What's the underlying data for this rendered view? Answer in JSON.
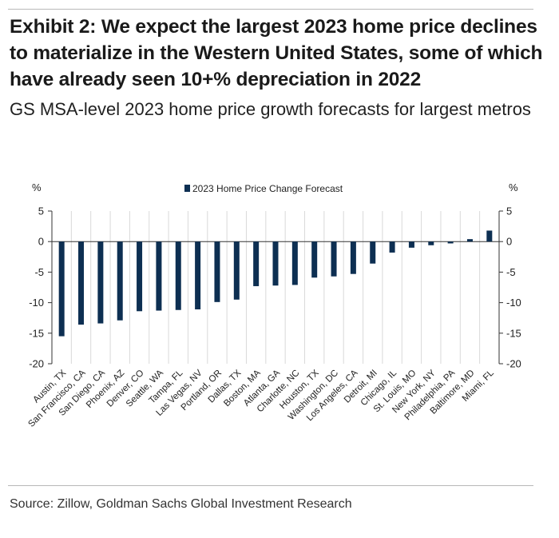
{
  "header": {
    "title": "Exhibit 2: We expect the largest 2023 home price declines to materialize in the Western United States, some of which have already seen 10+% depreciation in 2022",
    "subtitle": "GS MSA-level 2023 home price growth forecasts for largest metros"
  },
  "footer": {
    "source": "Source: Zillow, Goldman Sachs Global Investment Research"
  },
  "chart_data": {
    "type": "bar",
    "title": "",
    "xlabel": "",
    "ylabel": "%",
    "ylabel_right": "%",
    "ylim": [
      -20,
      5
    ],
    "yticks": [
      5,
      0,
      -5,
      -10,
      -15,
      -20
    ],
    "grid": true,
    "legend": "top-center",
    "bar_color": "#0d2f52",
    "categories": [
      "Austin, TX",
      "San Francisco, CA",
      "San Diego, CA",
      "Phoenix, AZ",
      "Denver, CO",
      "Seattle, WA",
      "Tampa, FL",
      "Las Vegas, NV",
      "Portland, OR",
      "Dallas, TX",
      "Boston, MA",
      "Atlanta, GA",
      "Charlotte, NC",
      "Houston, TX",
      "Washington, DC",
      "Los Angeles, CA",
      "Detroit, MI",
      "Chicago, IL",
      "St. Louis, MO",
      "New York, NY",
      "Philadelphia, PA",
      "Baltimore, MD",
      "Miami, FL"
    ],
    "series": [
      {
        "name": "2023 Home Price Change Forecast",
        "values": [
          -15.5,
          -13.6,
          -13.4,
          -12.9,
          -11.4,
          -11.3,
          -11.2,
          -11.1,
          -9.9,
          -9.5,
          -7.3,
          -7.2,
          -7.1,
          -5.9,
          -5.7,
          -5.3,
          -3.6,
          -1.8,
          -1.0,
          -0.6,
          -0.3,
          0.4,
          1.8
        ]
      }
    ]
  }
}
